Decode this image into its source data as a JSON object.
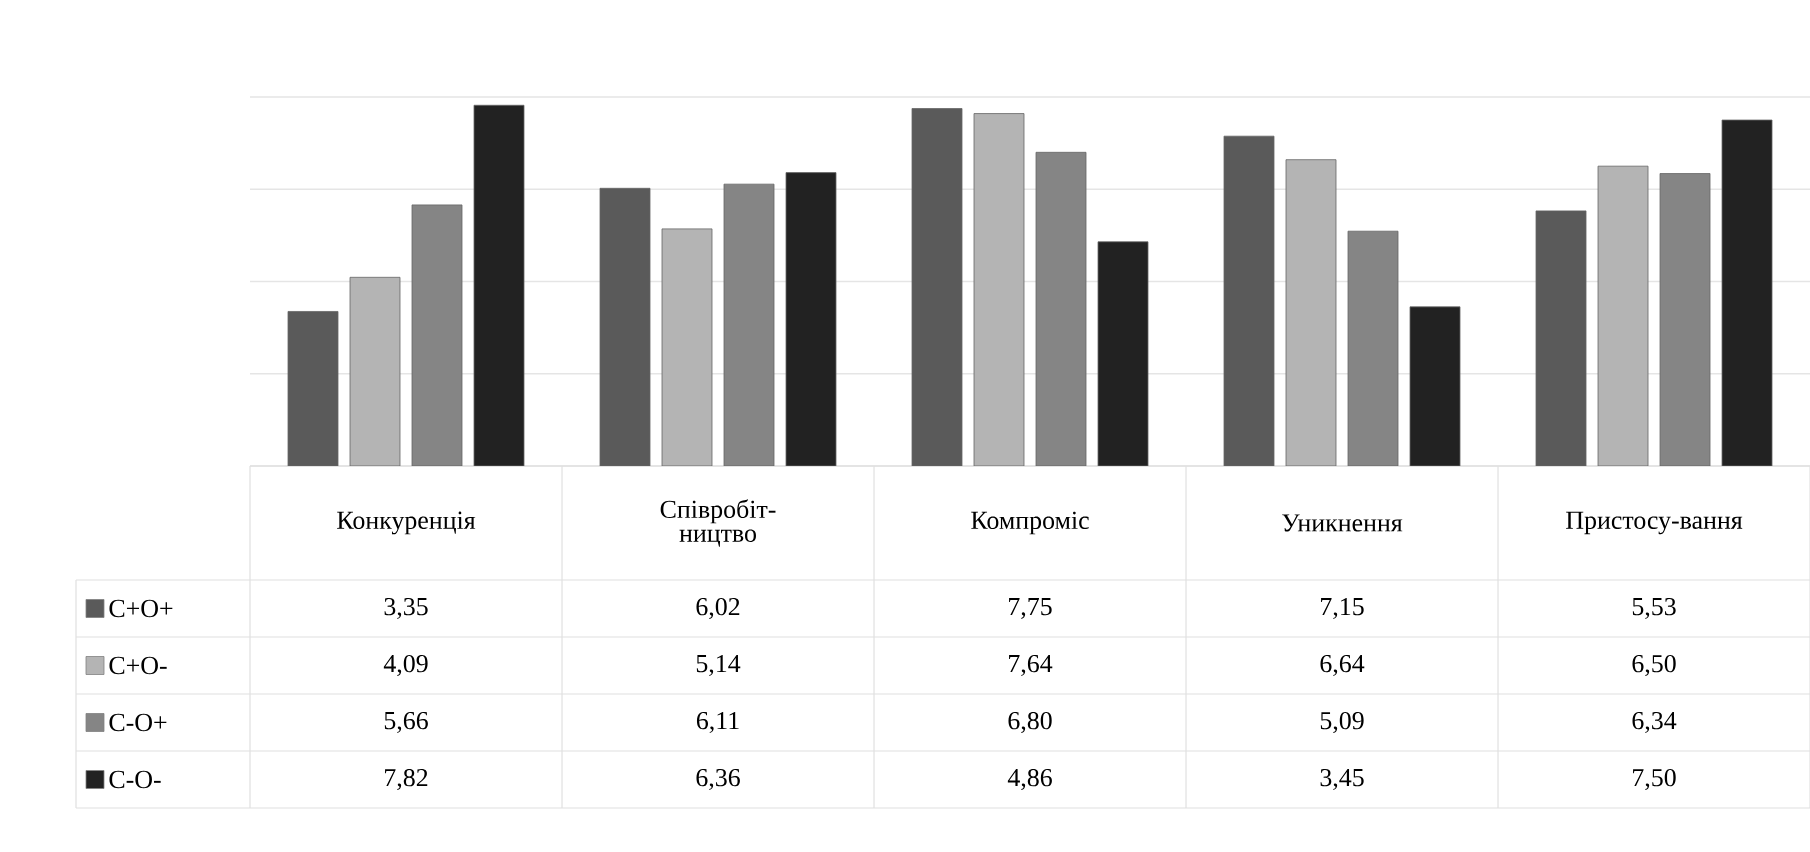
{
  "chart_data": {
    "type": "bar",
    "categories": [
      "Конкуренція",
      "Співробіт-ництво",
      "Компроміс",
      "Уникнення",
      "Пристосу-вання"
    ],
    "series": [
      {
        "name": "C+O+",
        "color": "#5a5a5a",
        "values": [
          3.35,
          6.02,
          7.75,
          7.15,
          5.53
        ],
        "value_labels": [
          "3,35",
          "6,02",
          "7,75",
          "7,15",
          "5,53"
        ]
      },
      {
        "name": "C+O-",
        "color": "#b4b4b4",
        "values": [
          4.09,
          5.14,
          7.64,
          6.64,
          6.5
        ],
        "value_labels": [
          "4,09",
          "5,14",
          "7,64",
          "6,64",
          "6,50"
        ]
      },
      {
        "name": "C-O+",
        "color": "#858585",
        "values": [
          5.66,
          6.11,
          6.8,
          5.09,
          6.34
        ],
        "value_labels": [
          "5,66",
          "6,11",
          "6,80",
          "5,09",
          "6,34"
        ]
      },
      {
        "name": "C-O-",
        "color": "#222222",
        "values": [
          7.82,
          6.36,
          4.86,
          3.45,
          7.5
        ],
        "value_labels": [
          "7,82",
          "6,36",
          "4,86",
          "3,45",
          "7,50"
        ]
      }
    ],
    "tick_labels": "x",
    "grid": "y",
    "legend": "bottom"
  }
}
